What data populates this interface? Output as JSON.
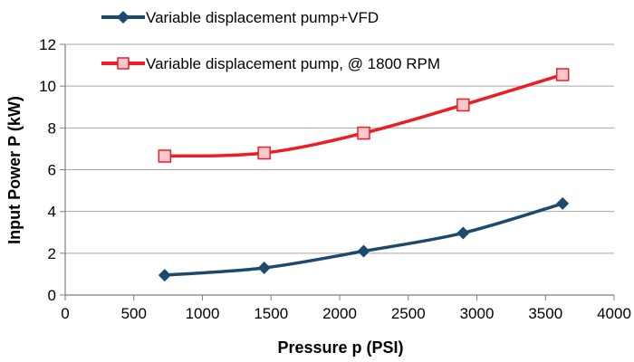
{
  "chart_data": {
    "type": "line",
    "title": "",
    "xlabel": "Pressure  p (PSI)",
    "ylabel": "Input Power P (kW)",
    "xlim": [
      0,
      4000
    ],
    "ylim": [
      0,
      12
    ],
    "xticks": [
      "0",
      "500",
      "1000",
      "1500",
      "2000",
      "2500",
      "3000",
      "3500",
      "4000"
    ],
    "yticks": [
      "0",
      "2",
      "4",
      "6",
      "8",
      "10",
      "12"
    ],
    "grid": "horizontal",
    "legend_position": "top",
    "series": [
      {
        "name": "Variable displacement pump+VFD",
        "color": "#1c4a6e",
        "marker": "diamond",
        "x": [
          725,
          1450,
          2175,
          2900,
          3625
        ],
        "y": [
          0.95,
          1.3,
          2.1,
          2.97,
          4.38
        ]
      },
      {
        "name": "Variable displacement pump, @ 1800 RPM",
        "color": "#ee1c25",
        "marker": "square",
        "x": [
          725,
          1450,
          2175,
          2900,
          3625
        ],
        "y": [
          6.65,
          6.8,
          7.75,
          9.1,
          10.55
        ]
      }
    ]
  }
}
